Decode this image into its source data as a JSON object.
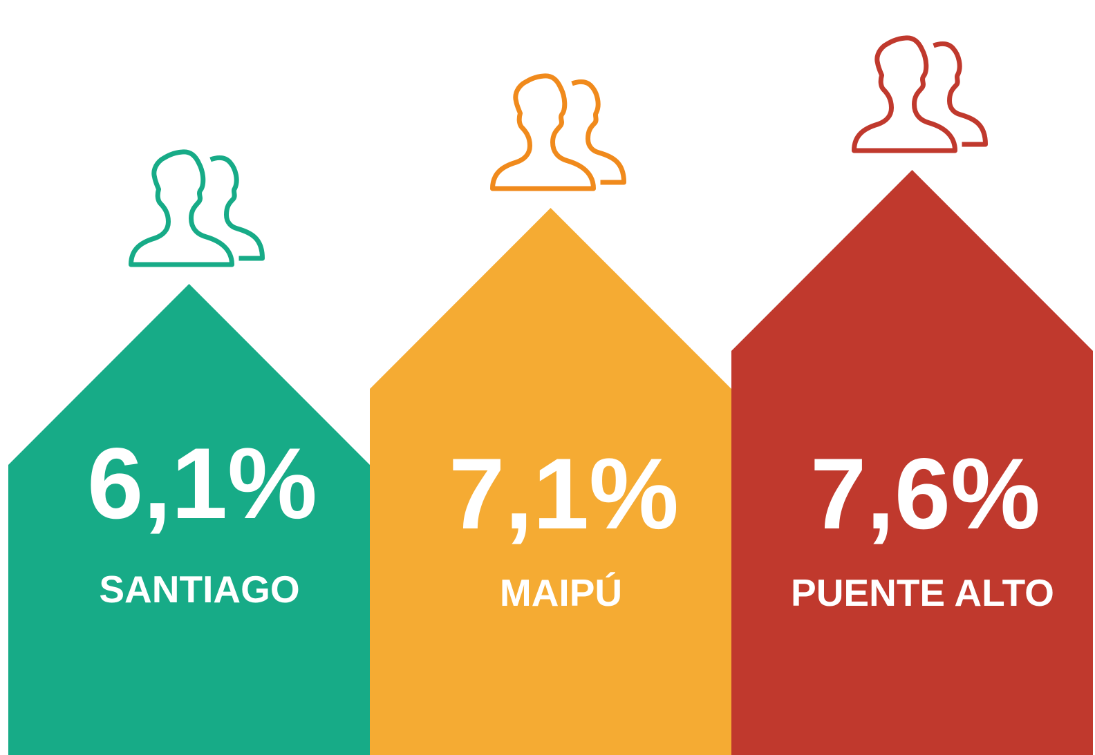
{
  "chart_data": {
    "type": "bar",
    "categories": [
      "SANTIAGO",
      "MAIPÚ",
      "PUENTE ALTO"
    ],
    "values": [
      6.1,
      7.1,
      7.6
    ],
    "value_labels": [
      "6,1%",
      "7,1%",
      "7,6%"
    ],
    "colors": [
      "#17ab87",
      "#f5ab33",
      "#c0392d"
    ],
    "icon_colors": [
      "#17ab87",
      "#f08a1c",
      "#c0392d"
    ]
  }
}
